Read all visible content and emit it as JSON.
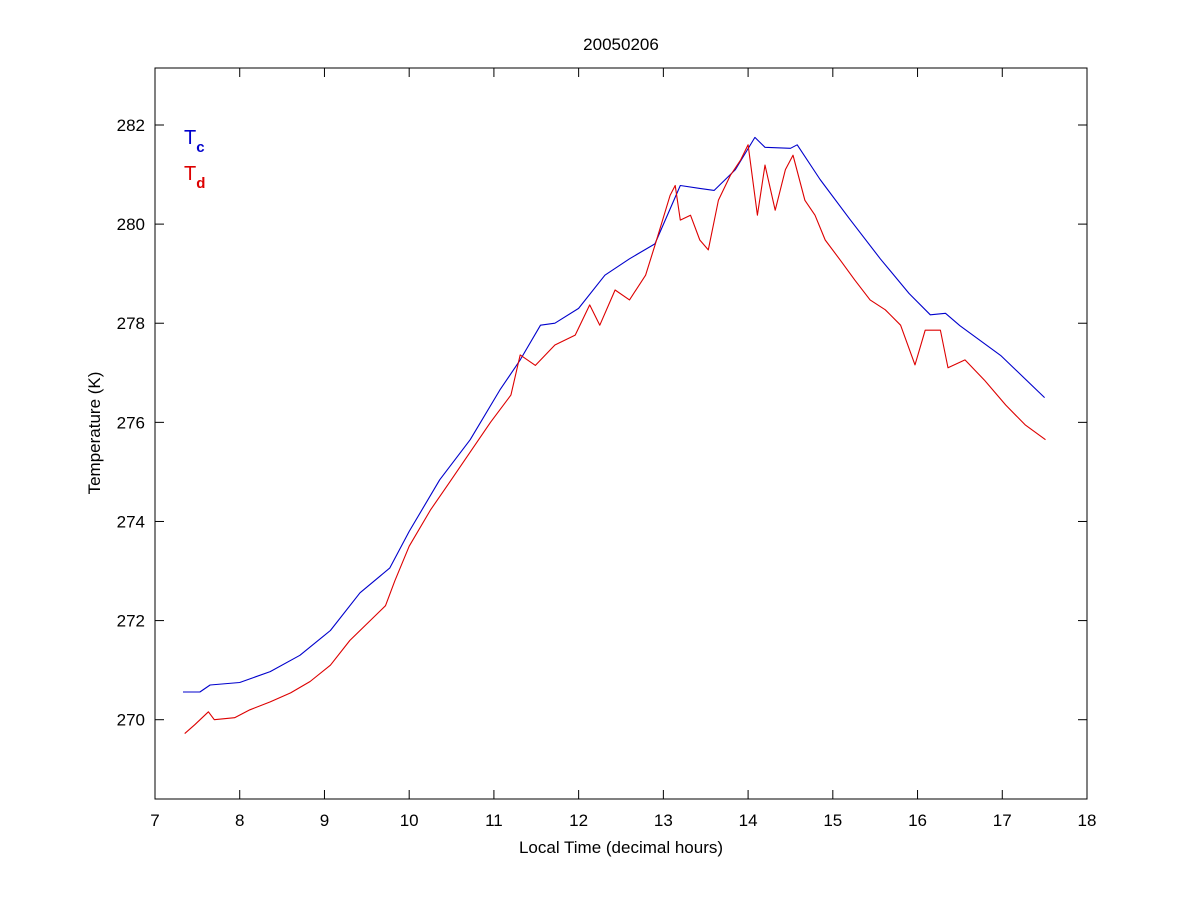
{
  "chart_data": {
    "type": "line",
    "title": "20050206",
    "xlabel": "Local Time (decimal hours)",
    "ylabel": "Temperature (K)",
    "xlim": [
      7,
      18
    ],
    "ylim": [
      268.4,
      283.15
    ],
    "xticks": [
      7,
      8,
      9,
      10,
      11,
      12,
      13,
      14,
      15,
      16,
      17,
      18
    ],
    "yticks": [
      270,
      272,
      274,
      276,
      278,
      280,
      282
    ],
    "grid": false,
    "legend_position": "top-left",
    "series": [
      {
        "name": "T",
        "subscript": "c",
        "color": "#0000cc",
        "x": [
          7.33,
          7.53,
          7.65,
          8.0,
          8.36,
          8.71,
          9.07,
          9.42,
          9.77,
          10.0,
          10.36,
          10.72,
          11.07,
          11.31,
          11.55,
          11.72,
          12.0,
          12.31,
          12.6,
          12.9,
          13.2,
          13.43,
          13.6,
          13.85,
          14.08,
          14.2,
          14.5,
          14.58,
          14.85,
          15.2,
          15.56,
          15.9,
          16.15,
          16.33,
          16.5,
          16.98,
          17.5
        ],
        "y": [
          270.56,
          270.56,
          270.7,
          270.75,
          270.97,
          271.3,
          271.8,
          272.56,
          273.06,
          273.8,
          274.84,
          275.65,
          276.65,
          277.26,
          277.96,
          278.0,
          278.3,
          278.97,
          279.3,
          279.6,
          280.78,
          280.72,
          280.68,
          281.1,
          281.75,
          281.55,
          281.53,
          281.6,
          280.9,
          280.1,
          279.3,
          278.6,
          278.17,
          278.2,
          277.95,
          277.35,
          276.5
        ]
      },
      {
        "name": "T",
        "subscript": "d",
        "color": "#dd0000",
        "x": [
          7.35,
          7.47,
          7.63,
          7.7,
          7.94,
          8.12,
          8.36,
          8.6,
          8.83,
          9.07,
          9.3,
          9.54,
          9.72,
          9.83,
          10.0,
          10.25,
          10.48,
          10.72,
          10.96,
          11.2,
          11.31,
          11.49,
          11.72,
          11.96,
          12.13,
          12.25,
          12.43,
          12.6,
          12.79,
          12.9,
          13.08,
          13.14,
          13.2,
          13.32,
          13.43,
          13.53,
          13.65,
          13.79,
          13.91,
          14.0,
          14.11,
          14.2,
          14.32,
          14.44,
          14.53,
          14.67,
          14.79,
          14.91,
          15.09,
          15.26,
          15.44,
          15.62,
          15.8,
          15.97,
          16.09,
          16.27,
          16.36,
          16.56,
          16.79,
          17.04,
          17.27,
          17.51
        ],
        "y": [
          269.72,
          269.9,
          270.16,
          270.0,
          270.04,
          270.2,
          270.36,
          270.54,
          270.77,
          271.1,
          271.6,
          272.0,
          272.3,
          272.8,
          273.5,
          274.23,
          274.8,
          275.4,
          276.0,
          276.55,
          277.36,
          277.15,
          277.56,
          277.76,
          278.37,
          277.96,
          278.67,
          278.47,
          278.97,
          279.57,
          280.58,
          280.78,
          280.08,
          280.18,
          279.68,
          279.48,
          280.48,
          280.98,
          281.29,
          281.6,
          280.18,
          281.19,
          280.28,
          281.1,
          281.39,
          280.48,
          280.18,
          279.68,
          279.27,
          278.87,
          278.47,
          278.27,
          277.96,
          277.16,
          277.86,
          277.86,
          277.1,
          277.26,
          276.85,
          276.35,
          275.95,
          275.65
        ]
      }
    ]
  }
}
